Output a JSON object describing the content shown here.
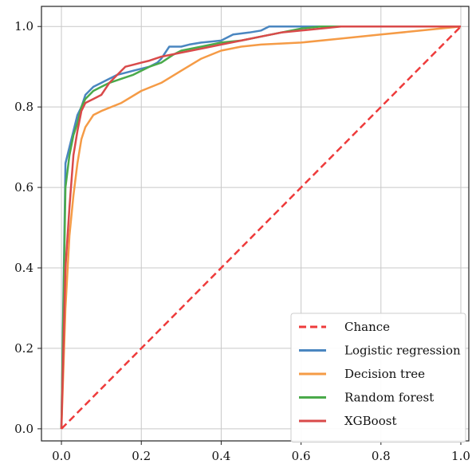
{
  "chart_data": {
    "type": "line",
    "title": "",
    "xlabel": "",
    "ylabel": "",
    "xlim": [
      -0.05,
      1.02
    ],
    "ylim": [
      -0.03,
      1.05
    ],
    "xticks": [
      "0.0",
      "0.2",
      "0.4",
      "0.6",
      "0.8",
      "1.0"
    ],
    "yticks": [
      "0.0",
      "0.2",
      "0.4",
      "0.6",
      "0.8",
      "1.0"
    ],
    "grid": true,
    "legend_position": "bottom-right",
    "series": [
      {
        "name": "Chance",
        "color": "#ee3b3b",
        "dashed": true,
        "points": [
          [
            0,
            0
          ],
          [
            1,
            1
          ]
        ]
      },
      {
        "name": "Logistic regression",
        "color": "#4a86c0",
        "dashed": false,
        "points": [
          [
            0,
            0
          ],
          [
            0.01,
            0.66
          ],
          [
            0.02,
            0.7
          ],
          [
            0.03,
            0.74
          ],
          [
            0.04,
            0.78
          ],
          [
            0.05,
            0.8
          ],
          [
            0.06,
            0.83
          ],
          [
            0.08,
            0.85
          ],
          [
            0.1,
            0.86
          ],
          [
            0.12,
            0.87
          ],
          [
            0.14,
            0.88
          ],
          [
            0.16,
            0.885
          ],
          [
            0.18,
            0.89
          ],
          [
            0.2,
            0.895
          ],
          [
            0.22,
            0.9
          ],
          [
            0.24,
            0.91
          ],
          [
            0.25,
            0.92
          ],
          [
            0.27,
            0.95
          ],
          [
            0.3,
            0.95
          ],
          [
            0.32,
            0.955
          ],
          [
            0.35,
            0.96
          ],
          [
            0.4,
            0.965
          ],
          [
            0.43,
            0.98
          ],
          [
            0.47,
            0.985
          ],
          [
            0.5,
            0.99
          ],
          [
            0.52,
            1.0
          ],
          [
            0.6,
            1.0
          ],
          [
            1.0,
            1.0
          ]
        ]
      },
      {
        "name": "Decision tree",
        "color": "#f59b46",
        "dashed": false,
        "points": [
          [
            0,
            0
          ],
          [
            0.01,
            0.3
          ],
          [
            0.02,
            0.48
          ],
          [
            0.03,
            0.58
          ],
          [
            0.04,
            0.66
          ],
          [
            0.05,
            0.72
          ],
          [
            0.06,
            0.75
          ],
          [
            0.08,
            0.78
          ],
          [
            0.1,
            0.79
          ],
          [
            0.15,
            0.81
          ],
          [
            0.2,
            0.84
          ],
          [
            0.25,
            0.86
          ],
          [
            0.3,
            0.89
          ],
          [
            0.35,
            0.92
          ],
          [
            0.4,
            0.94
          ],
          [
            0.45,
            0.95
          ],
          [
            0.5,
            0.955
          ],
          [
            0.6,
            0.96
          ],
          [
            0.7,
            0.97
          ],
          [
            0.8,
            0.98
          ],
          [
            0.9,
            0.99
          ],
          [
            1.0,
            1.0
          ]
        ]
      },
      {
        "name": "Random forest",
        "color": "#4aaa4a",
        "dashed": false,
        "points": [
          [
            0,
            0
          ],
          [
            0.01,
            0.6
          ],
          [
            0.02,
            0.68
          ],
          [
            0.03,
            0.73
          ],
          [
            0.04,
            0.76
          ],
          [
            0.05,
            0.8
          ],
          [
            0.06,
            0.82
          ],
          [
            0.08,
            0.84
          ],
          [
            0.1,
            0.85
          ],
          [
            0.12,
            0.86
          ],
          [
            0.15,
            0.87
          ],
          [
            0.18,
            0.88
          ],
          [
            0.2,
            0.89
          ],
          [
            0.22,
            0.9
          ],
          [
            0.25,
            0.91
          ],
          [
            0.28,
            0.93
          ],
          [
            0.3,
            0.94
          ],
          [
            0.35,
            0.95
          ],
          [
            0.4,
            0.96
          ],
          [
            0.45,
            0.965
          ],
          [
            0.5,
            0.975
          ],
          [
            0.55,
            0.985
          ],
          [
            0.6,
            0.995
          ],
          [
            0.65,
            1.0
          ],
          [
            1.0,
            1.0
          ]
        ]
      },
      {
        "name": "XGBoost",
        "color": "#d94a4a",
        "dashed": false,
        "points": [
          [
            0,
            0
          ],
          [
            0.01,
            0.4
          ],
          [
            0.02,
            0.55
          ],
          [
            0.03,
            0.68
          ],
          [
            0.04,
            0.74
          ],
          [
            0.05,
            0.79
          ],
          [
            0.06,
            0.81
          ],
          [
            0.08,
            0.82
          ],
          [
            0.1,
            0.83
          ],
          [
            0.12,
            0.86
          ],
          [
            0.14,
            0.88
          ],
          [
            0.16,
            0.9
          ],
          [
            0.18,
            0.905
          ],
          [
            0.2,
            0.91
          ],
          [
            0.22,
            0.915
          ],
          [
            0.25,
            0.925
          ],
          [
            0.3,
            0.935
          ],
          [
            0.35,
            0.945
          ],
          [
            0.4,
            0.955
          ],
          [
            0.45,
            0.965
          ],
          [
            0.5,
            0.975
          ],
          [
            0.55,
            0.985
          ],
          [
            0.6,
            0.99
          ],
          [
            0.7,
            1.0
          ],
          [
            1.0,
            1.0
          ]
        ]
      }
    ]
  }
}
